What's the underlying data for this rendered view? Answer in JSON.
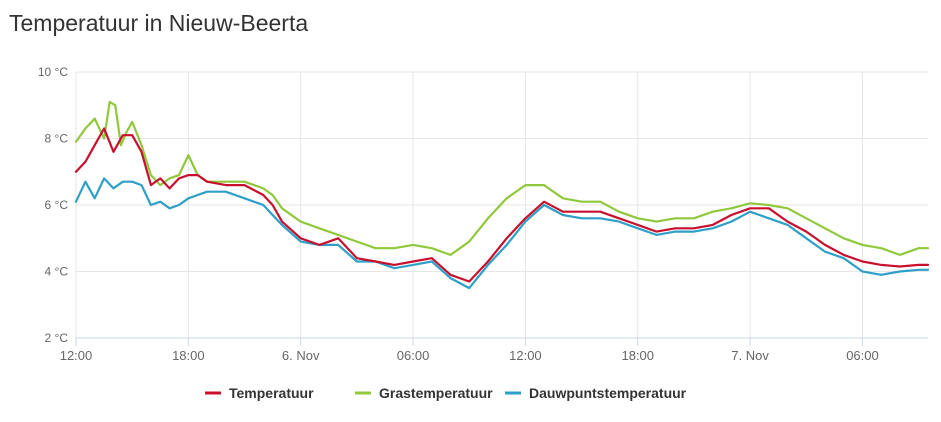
{
  "title": "Temperatuur in Nieuw-Beerta",
  "chart_data": {
    "type": "line",
    "title": "Temperatuur in Nieuw-Beerta",
    "xlabel": "",
    "ylabel": "",
    "ylim": [
      2,
      10
    ],
    "xlim_hours": [
      0,
      45.5
    ],
    "y_ticks": [
      "2 °C",
      "4 °C",
      "6 °C",
      "8 °C",
      "10 °C"
    ],
    "x_ticks": [
      "12:00",
      "18:00",
      "6. Nov",
      "06:00",
      "12:00",
      "18:00",
      "7. Nov",
      "06:00"
    ],
    "grid": true,
    "legend_position": "bottom-center",
    "x_unit": "hours since 5 Nov 12:00",
    "series": [
      {
        "name": "Temperatuur",
        "color": "#c8102e",
        "x": [
          0,
          0.5,
          1,
          1.5,
          2,
          2.5,
          3,
          3.5,
          4,
          4.5,
          5,
          5.5,
          6,
          6.5,
          7,
          8,
          9,
          10,
          10.5,
          11,
          12,
          13,
          14,
          15,
          16,
          17,
          18,
          19,
          20,
          21,
          22,
          23,
          24,
          25,
          26,
          27,
          28,
          29,
          30,
          31,
          32,
          33,
          34,
          35,
          36,
          37,
          38,
          39,
          40,
          41,
          42,
          43,
          44,
          45,
          45.5
        ],
        "values": [
          7.0,
          7.3,
          7.8,
          8.3,
          7.6,
          8.1,
          8.1,
          7.6,
          6.6,
          6.8,
          6.5,
          6.8,
          6.9,
          6.9,
          6.7,
          6.6,
          6.6,
          6.3,
          6.0,
          5.5,
          5.0,
          4.8,
          5.0,
          4.4,
          4.3,
          4.2,
          4.3,
          4.4,
          3.9,
          3.7,
          4.3,
          5.0,
          5.6,
          6.1,
          5.8,
          5.8,
          5.8,
          5.6,
          5.4,
          5.2,
          5.3,
          5.3,
          5.4,
          5.7,
          5.9,
          5.9,
          5.5,
          5.2,
          4.8,
          4.5,
          4.3,
          4.2,
          4.15,
          4.2,
          4.2
        ]
      },
      {
        "name": "Grastemperatuur",
        "color": "#90c83c",
        "x": [
          0,
          0.5,
          1,
          1.5,
          1.8,
          2.1,
          2.4,
          2.7,
          3,
          3.5,
          4,
          4.5,
          5,
          5.5,
          6,
          6.5,
          7,
          8,
          9,
          10,
          10.5,
          11,
          12,
          13,
          14,
          15,
          16,
          17,
          18,
          19,
          20,
          21,
          22,
          23,
          24,
          25,
          26,
          27,
          28,
          29,
          30,
          31,
          32,
          33,
          34,
          35,
          36,
          37,
          38,
          39,
          40,
          41,
          42,
          43,
          44,
          45,
          45.5
        ],
        "values": [
          7.9,
          8.3,
          8.6,
          8.0,
          9.1,
          9.0,
          7.8,
          8.2,
          8.5,
          7.8,
          6.9,
          6.6,
          6.8,
          6.9,
          7.5,
          6.9,
          6.7,
          6.7,
          6.7,
          6.5,
          6.3,
          5.9,
          5.5,
          5.3,
          5.1,
          4.9,
          4.7,
          4.7,
          4.8,
          4.7,
          4.5,
          4.9,
          5.6,
          6.2,
          6.6,
          6.6,
          6.2,
          6.1,
          6.1,
          5.8,
          5.6,
          5.5,
          5.6,
          5.6,
          5.8,
          5.9,
          6.05,
          6.0,
          5.9,
          5.6,
          5.3,
          5.0,
          4.8,
          4.7,
          4.5,
          4.7,
          4.7
        ]
      },
      {
        "name": "Dauwpuntstemperatuur",
        "color": "#2e9fc8",
        "x": [
          0,
          0.5,
          1,
          1.5,
          2,
          2.5,
          3,
          3.5,
          4,
          4.5,
          5,
          5.5,
          6,
          6.5,
          7,
          8,
          9,
          10,
          10.5,
          11,
          12,
          13,
          14,
          15,
          16,
          17,
          18,
          19,
          20,
          21,
          22,
          23,
          24,
          25,
          26,
          27,
          28,
          29,
          30,
          31,
          32,
          33,
          34,
          35,
          36,
          37,
          38,
          39,
          40,
          41,
          42,
          43,
          44,
          45,
          45.5
        ],
        "values": [
          6.1,
          6.7,
          6.2,
          6.8,
          6.5,
          6.7,
          6.7,
          6.6,
          6.0,
          6.1,
          5.9,
          6.0,
          6.2,
          6.3,
          6.4,
          6.4,
          6.2,
          6.0,
          5.7,
          5.4,
          4.9,
          4.8,
          4.8,
          4.3,
          4.3,
          4.1,
          4.2,
          4.3,
          3.8,
          3.5,
          4.2,
          4.8,
          5.5,
          6.0,
          5.7,
          5.6,
          5.6,
          5.5,
          5.3,
          5.1,
          5.2,
          5.2,
          5.3,
          5.5,
          5.8,
          5.6,
          5.4,
          5.0,
          4.6,
          4.4,
          4.0,
          3.9,
          4.0,
          4.05,
          4.05
        ]
      }
    ]
  }
}
